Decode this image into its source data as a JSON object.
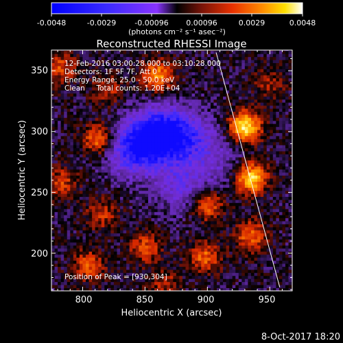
{
  "chart_data": {
    "type": "heatmap",
    "title": "Reconstructed RHESSI Image",
    "xlabel": "Heliocentric X (arcsec)",
    "ylabel": "Heliocentric Y (arcsec)",
    "xlim": [
      775,
      968
    ],
    "ylim": [
      169,
      367
    ],
    "x_ticks": [
      "800",
      "850",
      "900",
      "950"
    ],
    "y_ticks": [
      "200",
      "250",
      "300",
      "350"
    ],
    "grid": false,
    "colorbar": {
      "ticks": [
        "-0.0048",
        "-0.0029",
        "-0.00096",
        "0.00096",
        "0.0029",
        "0.0048"
      ],
      "range": [
        -0.0048,
        0.0048
      ],
      "units_label": "(photons cm⁻² s⁻¹ asec⁻²)"
    },
    "annotations": {
      "time": "12-Feb-2016 03:00:28.000 to 03:10:28.000",
      "detectors": "Detectors: 1F 5F 7F, Att 0",
      "energy": "Energy Range: 25.0 - 50.0 keV",
      "method": "Clean     Total counts: 1.20E+04",
      "peak": "Position of Peak = [930,304]"
    },
    "footer_date": "8-Oct-2017 18:20",
    "limb_line": {
      "x": [
        907,
        958
      ],
      "y": [
        365,
        172
      ]
    },
    "sources": [
      {
        "x": 930,
        "y": 304,
        "value": 0.0048
      },
      {
        "x": 935,
        "y": 262,
        "value": 0.0045
      },
      {
        "x": 813,
        "y": 294,
        "value": 0.0032
      },
      {
        "x": 860,
        "y": 346,
        "value": 0.0033
      },
      {
        "x": 900,
        "y": 240,
        "value": 0.003
      },
      {
        "x": 935,
        "y": 214,
        "value": 0.0028
      },
      {
        "x": 898,
        "y": 197,
        "value": 0.0026
      },
      {
        "x": 805,
        "y": 190,
        "value": 0.0024
      },
      {
        "x": 850,
        "y": 205,
        "value": 0.0022
      },
      {
        "x": 783,
        "y": 353,
        "value": 0.0022
      },
      {
        "x": 783,
        "y": 258,
        "value": 0.002
      },
      {
        "x": 815,
        "y": 232,
        "value": 0.0018
      },
      {
        "x": 865,
        "y": 175,
        "value": 0.0016
      },
      {
        "x": 820,
        "y": 335,
        "value": 0.0016
      },
      {
        "x": 950,
        "y": 340,
        "value": 0.0014
      },
      {
        "x": 862,
        "y": 298,
        "value": -0.0046
      },
      {
        "x": 840,
        "y": 285,
        "value": -0.0035
      },
      {
        "x": 885,
        "y": 295,
        "value": -0.0025
      },
      {
        "x": 880,
        "y": 255,
        "value": -0.002
      },
      {
        "x": 910,
        "y": 275,
        "value": -0.0012
      }
    ]
  }
}
